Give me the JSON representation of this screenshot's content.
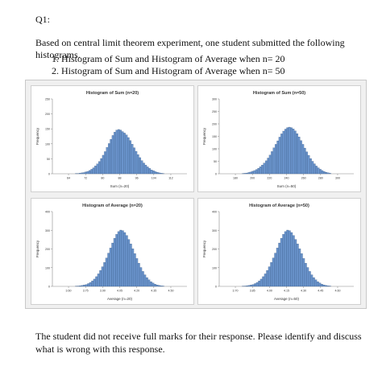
{
  "question_label": "Q1:",
  "intro": "Based on central limit theorem experiment, one student submitted the following histograms.",
  "items": [
    "Histogram of Sum and Histogram of Average when n= 20",
    "Histogram of Sum and Histogram of Average when n= 50"
  ],
  "footer": "The student did not receive full marks for their response. Please identify and discuss what is wrong with this response.",
  "colors": {
    "bar_fill": "#6a94cc",
    "bar_stroke": "#2f4f7a",
    "panel_bg": "#ffffff"
  },
  "chart_data": [
    {
      "type": "bar",
      "title": "Histogram of Sum (n=20)",
      "xlabel": "Sum (n=20)",
      "ylabel": "Frequency",
      "ylim": [
        0,
        250
      ],
      "yticks": [
        "0",
        "50",
        "100",
        "150",
        "200",
        "250"
      ],
      "xticks": [
        "64",
        "72",
        "80",
        "88",
        "96",
        "104",
        "112"
      ],
      "values": [
        1,
        1,
        2,
        3,
        4,
        6,
        8,
        11,
        15,
        20,
        26,
        33,
        41,
        51,
        62,
        74,
        88,
        101,
        115,
        128,
        139,
        146,
        148,
        146,
        141,
        136,
        130,
        121,
        111,
        99,
        87,
        75,
        64,
        54,
        44,
        36,
        29,
        23,
        18,
        13,
        10,
        7,
        5,
        3,
        2,
        1
      ]
    },
    {
      "type": "bar",
      "title": "Histogram of Sum (n=50)",
      "xlabel": "Sum (n=50)",
      "ylabel": "Frequency",
      "ylim": [
        0,
        300
      ],
      "yticks": [
        "0",
        "50",
        "100",
        "150",
        "200",
        "250",
        "300"
      ],
      "xticks": [
        "180",
        "200",
        "220",
        "240",
        "260",
        "280",
        "300"
      ],
      "values": [
        1,
        2,
        3,
        5,
        7,
        10,
        13,
        17,
        22,
        28,
        35,
        43,
        52,
        63,
        75,
        89,
        104,
        118,
        132,
        147,
        160,
        171,
        179,
        185,
        187,
        185,
        180,
        172,
        161,
        148,
        133,
        118,
        103,
        88,
        74,
        61,
        50,
        40,
        31,
        24,
        18,
        13,
        9,
        6,
        4,
        2
      ]
    },
    {
      "type": "bar",
      "title": "Histogram of Average (n=20)",
      "xlabel": "Average (n=20)",
      "ylabel": "Frequency",
      "ylim": [
        0,
        400
      ],
      "yticks": [
        "0",
        "100",
        "200",
        "300",
        "400"
      ],
      "xticks": [
        "3.60",
        "3.75",
        "3.90",
        "4.05",
        "4.20",
        "4.35",
        "4.50"
      ],
      "values": [
        1,
        2,
        3,
        5,
        7,
        10,
        15,
        21,
        29,
        39,
        52,
        67,
        85,
        105,
        128,
        152,
        178,
        205,
        232,
        257,
        278,
        293,
        301,
        298,
        288,
        272,
        251,
        227,
        201,
        175,
        149,
        124,
        101,
        80,
        62,
        47,
        35,
        25,
        18,
        12,
        8,
        5,
        3,
        2
      ]
    },
    {
      "type": "bar",
      "title": "Histogram of Average (n=50)",
      "xlabel": "Average (n=50)",
      "ylabel": "Frequency",
      "ylim": [
        0,
        400
      ],
      "yticks": [
        "0",
        "100",
        "200",
        "300",
        "400"
      ],
      "xticks": [
        "3.70",
        "3.85",
        "4.00",
        "4.15",
        "4.30",
        "4.45",
        "4.60"
      ],
      "values": [
        1,
        2,
        3,
        5,
        7,
        10,
        15,
        21,
        29,
        39,
        52,
        67,
        85,
        105,
        128,
        152,
        178,
        205,
        232,
        257,
        278,
        293,
        301,
        298,
        288,
        272,
        251,
        227,
        201,
        175,
        149,
        124,
        101,
        80,
        62,
        47,
        35,
        25,
        18,
        12,
        8,
        5,
        3,
        2
      ]
    }
  ]
}
